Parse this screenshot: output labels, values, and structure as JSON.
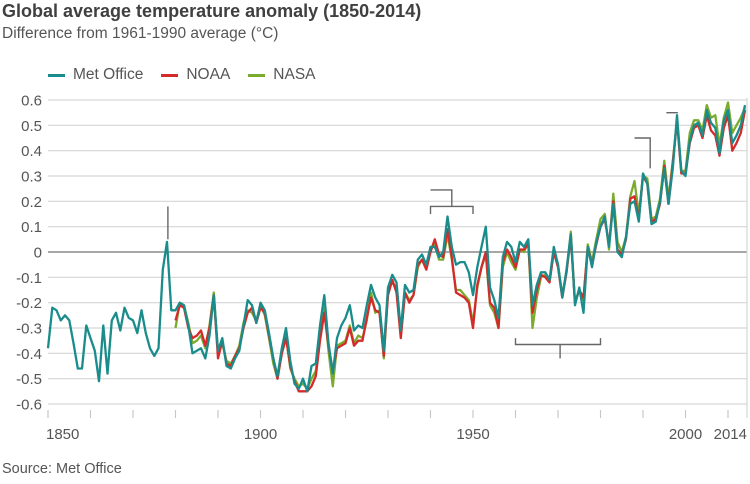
{
  "title": "Global average temperature anomaly (1850-2014)",
  "subtitle": "Difference from 1961-1990 average (°C)",
  "source": "Source: Met Office",
  "chart_data": {
    "type": "line",
    "title": "Global average temperature anomaly (1850-2014)",
    "subtitle": "Difference from 1961-1990 average (°C)",
    "xlabel": "",
    "ylabel": "",
    "xlim": [
      1850,
      2014
    ],
    "ylim": [
      -0.6,
      0.6
    ],
    "grid": true,
    "legend": "top-left",
    "xticks": [
      1850,
      1900,
      1950,
      2000,
      2014
    ],
    "xtick_labels": [
      "1850",
      "1900",
      "1950",
      "2000",
      "2014"
    ],
    "yticks": [
      0.6,
      0.5,
      0.4,
      0.3,
      0.2,
      0.1,
      0,
      -0.1,
      -0.2,
      -0.3,
      -0.4,
      -0.5,
      -0.6
    ],
    "ytick_labels": [
      "0.6",
      "0.5",
      "0.4",
      "0.3",
      "0.2",
      "0.1",
      "0",
      "-0.1",
      "-0.2",
      "-0.3",
      "-0.4",
      "-0.5",
      "-0.6"
    ],
    "series": [
      {
        "name": "Met Office",
        "color": "#1a8c8c",
        "start_year": 1850,
        "values": [
          -0.38,
          -0.22,
          -0.23,
          -0.27,
          -0.25,
          -0.27,
          -0.36,
          -0.46,
          -0.46,
          -0.29,
          -0.34,
          -0.39,
          -0.51,
          -0.29,
          -0.48,
          -0.27,
          -0.24,
          -0.31,
          -0.22,
          -0.26,
          -0.27,
          -0.32,
          -0.23,
          -0.32,
          -0.38,
          -0.41,
          -0.38,
          -0.07,
          0.04,
          -0.23,
          -0.23,
          -0.2,
          -0.21,
          -0.29,
          -0.4,
          -0.39,
          -0.38,
          -0.42,
          -0.33,
          -0.17,
          -0.39,
          -0.34,
          -0.45,
          -0.46,
          -0.42,
          -0.39,
          -0.29,
          -0.19,
          -0.21,
          -0.28,
          -0.2,
          -0.23,
          -0.32,
          -0.42,
          -0.49,
          -0.38,
          -0.3,
          -0.43,
          -0.52,
          -0.54,
          -0.5,
          -0.55,
          -0.45,
          -0.44,
          -0.29,
          -0.17,
          -0.36,
          -0.48,
          -0.34,
          -0.29,
          -0.26,
          -0.21,
          -0.31,
          -0.29,
          -0.3,
          -0.21,
          -0.13,
          -0.18,
          -0.21,
          -0.39,
          -0.14,
          -0.09,
          -0.12,
          -0.31,
          -0.13,
          -0.16,
          -0.15,
          -0.03,
          -0.01,
          -0.05,
          0.02,
          0.02,
          -0.02,
          0.0,
          0.14,
          0.02,
          -0.05,
          -0.04,
          -0.04,
          -0.08,
          -0.17,
          -0.06,
          0.02,
          0.1,
          -0.14,
          -0.19,
          -0.26,
          -0.02,
          0.04,
          0.02,
          -0.04,
          0.04,
          0.02,
          0.05,
          -0.21,
          -0.13,
          -0.08,
          -0.08,
          -0.11,
          0.02,
          -0.05,
          -0.18,
          -0.07,
          0.07,
          -0.21,
          -0.14,
          -0.24,
          0.02,
          -0.06,
          0.04,
          0.1,
          0.14,
          0.02,
          0.19,
          0.0,
          -0.02,
          0.06,
          0.19,
          0.2,
          0.12,
          0.31,
          0.27,
          0.11,
          0.12,
          0.2,
          0.33,
          0.19,
          0.33,
          0.54,
          0.32,
          0.3,
          0.44,
          0.5,
          0.51,
          0.46,
          0.56,
          0.51,
          0.49,
          0.39,
          0.52,
          0.56,
          0.43,
          0.46,
          0.5,
          0.58
        ]
      },
      {
        "name": "NOAA",
        "color": "#d42a2a",
        "start_year": 1880,
        "values": [
          -0.27,
          -0.21,
          -0.22,
          -0.3,
          -0.34,
          -0.33,
          -0.31,
          -0.37,
          -0.3,
          -0.17,
          -0.42,
          -0.35,
          -0.44,
          -0.45,
          -0.41,
          -0.38,
          -0.3,
          -0.24,
          -0.22,
          -0.28,
          -0.22,
          -0.24,
          -0.33,
          -0.42,
          -0.5,
          -0.4,
          -0.34,
          -0.45,
          -0.51,
          -0.55,
          -0.55,
          -0.55,
          -0.53,
          -0.49,
          -0.35,
          -0.24,
          -0.37,
          -0.47,
          -0.38,
          -0.37,
          -0.36,
          -0.3,
          -0.37,
          -0.35,
          -0.35,
          -0.26,
          -0.18,
          -0.23,
          -0.24,
          -0.41,
          -0.17,
          -0.11,
          -0.16,
          -0.34,
          -0.16,
          -0.2,
          -0.17,
          -0.05,
          -0.03,
          -0.07,
          0.0,
          0.05,
          -0.01,
          -0.02,
          0.09,
          -0.02,
          -0.16,
          -0.17,
          -0.18,
          -0.2,
          -0.3,
          -0.13,
          -0.06,
          0.0,
          -0.2,
          -0.22,
          -0.3,
          -0.04,
          0.01,
          -0.02,
          -0.06,
          0.01,
          0.01,
          0.03,
          -0.24,
          -0.15,
          -0.09,
          -0.1,
          -0.12,
          0.0,
          -0.06,
          -0.18,
          -0.08,
          0.06,
          -0.2,
          -0.15,
          -0.18,
          0.02,
          -0.05,
          0.03,
          0.1,
          0.13,
          0.03,
          0.2,
          0.01,
          -0.01,
          0.05,
          0.21,
          0.22,
          0.13,
          0.3,
          0.27,
          0.12,
          0.13,
          0.19,
          0.34,
          0.19,
          0.35,
          0.52,
          0.31,
          0.31,
          0.43,
          0.49,
          0.5,
          0.45,
          0.54,
          0.48,
          0.46,
          0.38,
          0.49,
          0.54,
          0.4,
          0.43,
          0.47,
          0.56
        ]
      },
      {
        "name": "NASA",
        "color": "#7aab2e",
        "start_year": 1880,
        "values": [
          -0.3,
          -0.2,
          -0.21,
          -0.28,
          -0.36,
          -0.35,
          -0.33,
          -0.38,
          -0.29,
          -0.16,
          -0.4,
          -0.36,
          -0.43,
          -0.44,
          -0.41,
          -0.37,
          -0.28,
          -0.23,
          -0.24,
          -0.27,
          -0.21,
          -0.25,
          -0.34,
          -0.44,
          -0.5,
          -0.4,
          -0.33,
          -0.46,
          -0.5,
          -0.53,
          -0.52,
          -0.54,
          -0.5,
          -0.47,
          -0.32,
          -0.22,
          -0.39,
          -0.53,
          -0.37,
          -0.36,
          -0.35,
          -0.29,
          -0.36,
          -0.33,
          -0.34,
          -0.27,
          -0.16,
          -0.24,
          -0.23,
          -0.42,
          -0.15,
          -0.12,
          -0.14,
          -0.33,
          -0.16,
          -0.19,
          -0.17,
          -0.06,
          -0.03,
          -0.06,
          0.01,
          0.03,
          -0.03,
          -0.03,
          0.07,
          -0.03,
          -0.15,
          -0.15,
          -0.17,
          -0.19,
          -0.28,
          -0.14,
          -0.06,
          -0.01,
          -0.21,
          -0.24,
          -0.3,
          -0.06,
          0.0,
          -0.04,
          -0.07,
          0.01,
          0.0,
          0.04,
          -0.3,
          -0.18,
          -0.1,
          -0.09,
          -0.12,
          0.01,
          -0.05,
          -0.17,
          -0.08,
          0.08,
          -0.2,
          -0.15,
          -0.19,
          0.03,
          -0.04,
          0.05,
          0.13,
          0.15,
          0.01,
          0.23,
          0.04,
          0.0,
          0.06,
          0.22,
          0.28,
          0.15,
          0.3,
          0.29,
          0.13,
          0.14,
          0.21,
          0.36,
          0.21,
          0.36,
          0.52,
          0.32,
          0.32,
          0.47,
          0.52,
          0.52,
          0.48,
          0.58,
          0.53,
          0.54,
          0.42,
          0.53,
          0.59,
          0.47,
          0.5,
          0.53,
          0.57
        ]
      }
    ]
  }
}
